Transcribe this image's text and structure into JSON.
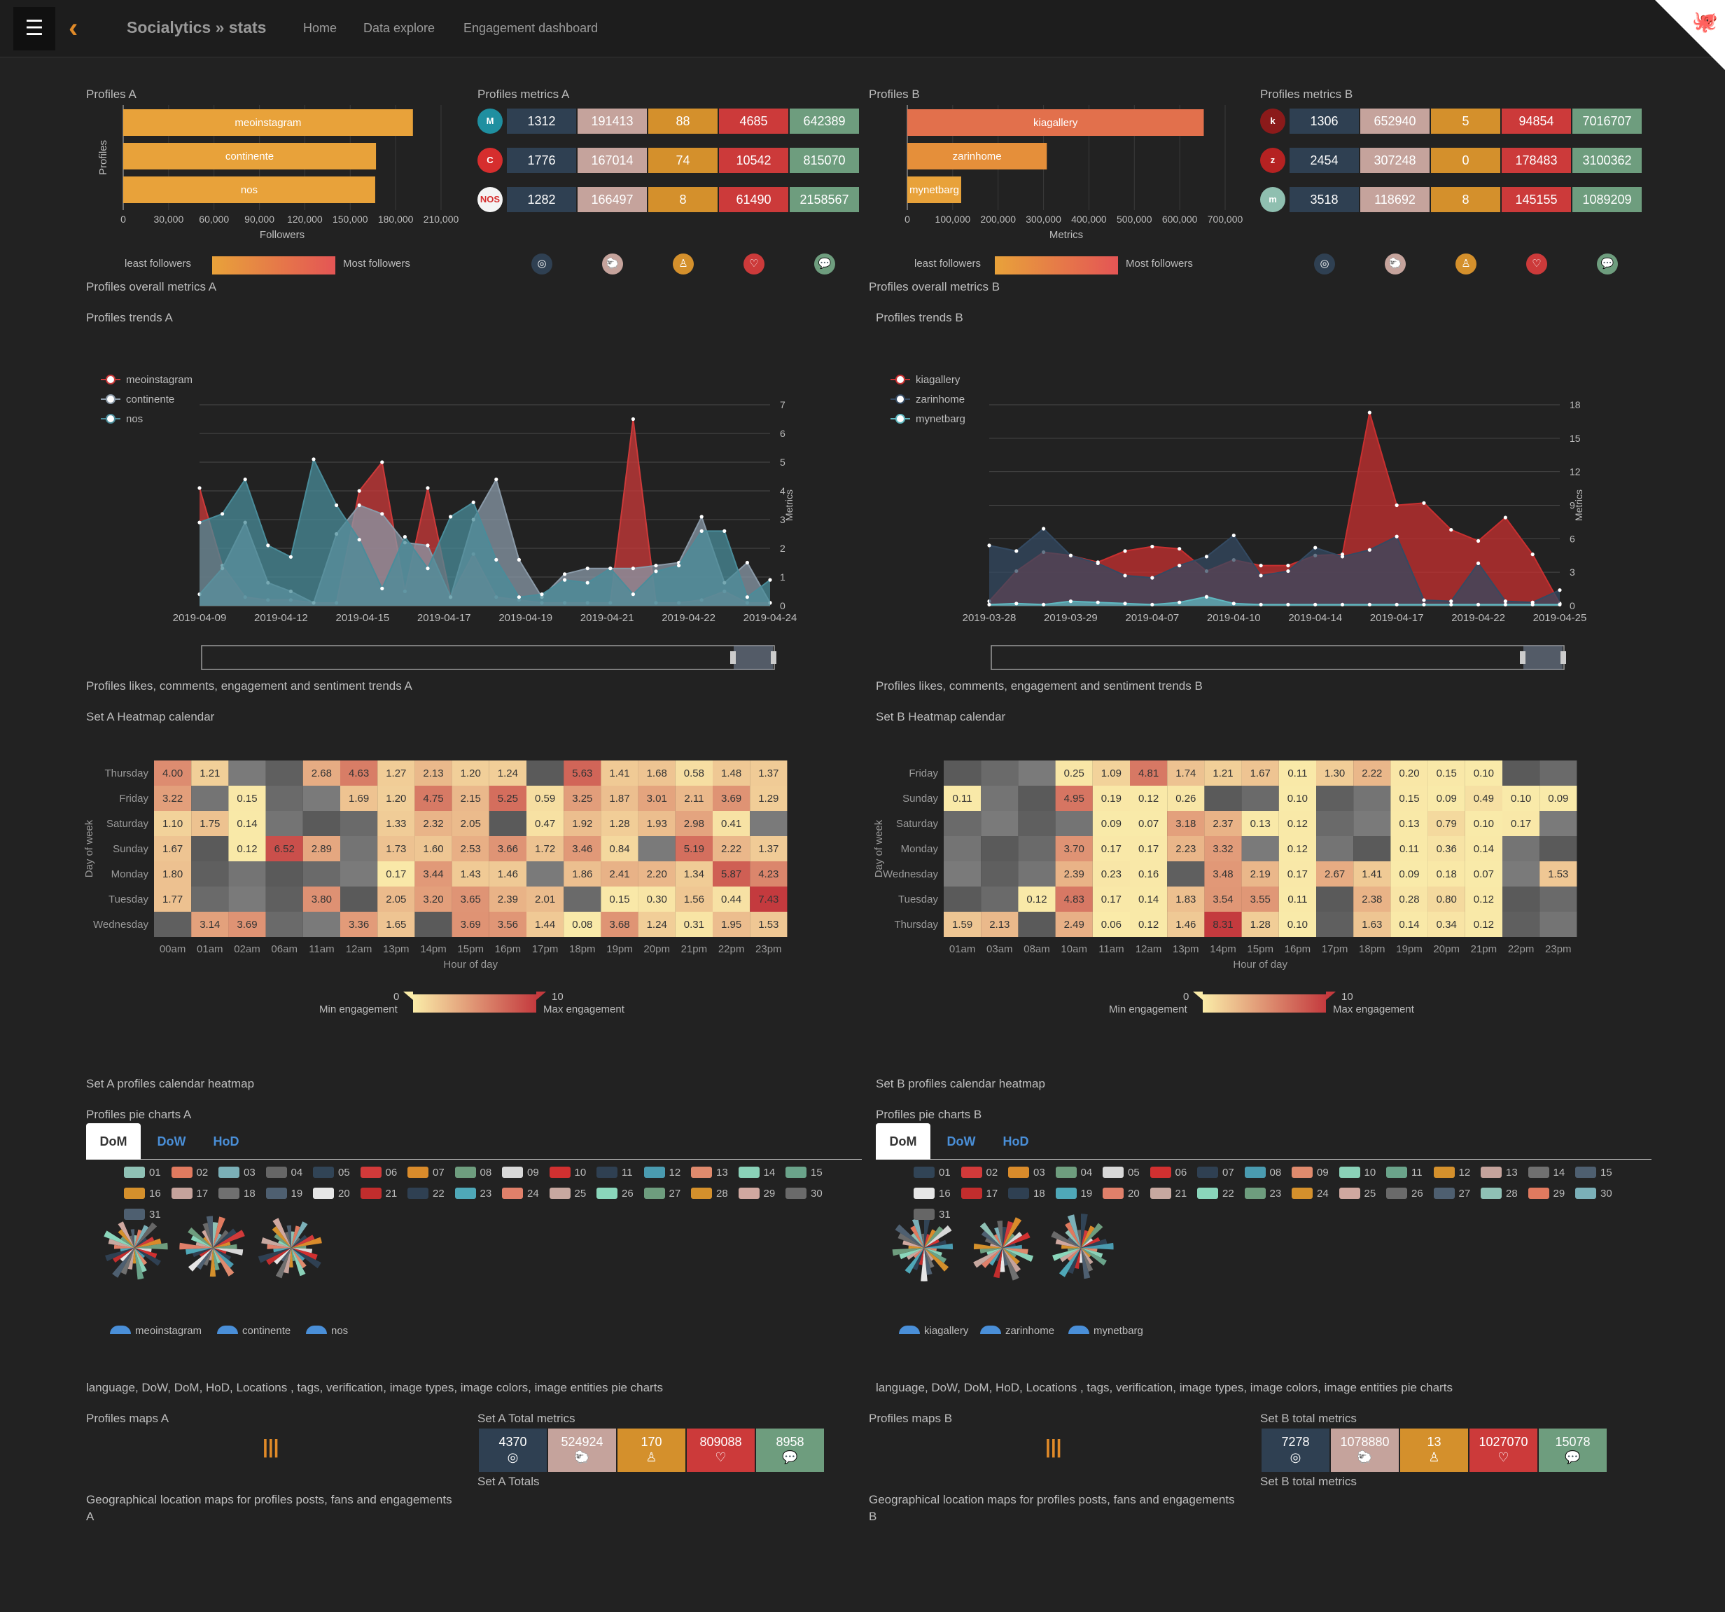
{
  "nav": {
    "brand": "Socialytics » stats",
    "links": [
      "Home",
      "Data explore",
      "Engagement dashboard"
    ]
  },
  "colors": {
    "orange": "#e8a23a",
    "red": "#cc3a3a",
    "slate": "#2f4052",
    "pink": "#c5a39c",
    "green": "#6e9d7e",
    "teal": "#4a8c9a"
  },
  "A": {
    "profiles_title": "Profiles A",
    "profiles_ylabel": "Profiles",
    "profiles_xlabel": "Followers",
    "profiles_ticks": [
      "0",
      "30,000",
      "60,000",
      "90,000",
      "120,000",
      "150,000",
      "180,000",
      "210,000"
    ],
    "profiles_max": 210000,
    "profiles": [
      {
        "name": "meoinstagram",
        "value": 191413
      },
      {
        "name": "continente",
        "value": 167014
      },
      {
        "name": "nos",
        "value": 166497
      }
    ],
    "grad_left": "least followers",
    "grad_right": "Most followers",
    "metrics_title": "Profiles metrics A",
    "metrics": [
      [
        "1312",
        "191413",
        "88",
        "4685",
        "642389"
      ],
      [
        "1776",
        "167014",
        "74",
        "10542",
        "815070"
      ],
      [
        "1282",
        "166497",
        "8",
        "61490",
        "2158567"
      ]
    ],
    "avatars": [
      {
        "label": "M",
        "color": "#1f8fa0"
      },
      {
        "label": "C",
        "color": "#d62e2e"
      },
      {
        "label": "NOS",
        "color": "#f4f4f4"
      }
    ],
    "overall_title": "Profiles overall metrics A",
    "trends_title": "Profiles trends A",
    "trends_legend": [
      "meoinstagram",
      "continente",
      "nos"
    ],
    "trends_xticks": [
      "2019-04-09",
      "2019-04-12",
      "2019-04-15",
      "2019-04-17",
      "2019-04-19",
      "2019-04-21",
      "2019-04-22",
      "2019-04-24"
    ],
    "trends_yticks": [
      "0",
      "1",
      "2",
      "3",
      "4",
      "5",
      "6",
      "7"
    ],
    "trends_ymax": 7,
    "trends_ylabel": "Metrics",
    "likes_title": "Profiles likes, comments, engagement and sentiment trends A",
    "heatmap_title": "Set A Heatmap calendar",
    "heat_rows": [
      "Thursday",
      "Friday",
      "Saturday",
      "Sunday",
      "Monday",
      "Tuesday",
      "Wednesday"
    ],
    "heat_cols": [
      "00am",
      "01am",
      "02am",
      "06am",
      "11am",
      "12am",
      "13pm",
      "14pm",
      "15pm",
      "16pm",
      "17pm",
      "18pm",
      "19pm",
      "20pm",
      "21pm",
      "22pm",
      "23pm"
    ],
    "heat_values": [
      [
        "4.00",
        "1.21",
        "",
        "",
        "2.68",
        "4.63",
        "1.27",
        "2.13",
        "1.20",
        "1.24",
        "",
        "5.63",
        "1.41",
        "1.68",
        "0.58",
        "1.48",
        "1.37"
      ],
      [
        "3.22",
        "",
        "0.15",
        "",
        "",
        "1.69",
        "1.20",
        "4.75",
        "2.15",
        "5.25",
        "0.59",
        "3.25",
        "1.87",
        "3.01",
        "2.11",
        "3.69",
        "1.29"
      ],
      [
        "1.10",
        "1.75",
        "0.14",
        "",
        "",
        "",
        "1.33",
        "2.32",
        "2.05",
        "",
        "0.47",
        "1.92",
        "1.28",
        "1.93",
        "2.98",
        "0.41",
        ""
      ],
      [
        "1.67",
        "",
        "0.12",
        "6.52",
        "2.89",
        "",
        "1.73",
        "1.60",
        "2.53",
        "3.66",
        "1.72",
        "3.46",
        "0.84",
        "",
        "5.19",
        "2.22",
        "1.37"
      ],
      [
        "1.80",
        "",
        "",
        "",
        "",
        "",
        "0.17",
        "3.44",
        "1.43",
        "1.46",
        "",
        "1.86",
        "2.41",
        "2.20",
        "1.34",
        "5.87",
        "4.23"
      ],
      [
        "1.77",
        "",
        "",
        "",
        "3.80",
        "",
        "2.05",
        "3.20",
        "3.65",
        "2.39",
        "2.01",
        "",
        "0.15",
        "0.30",
        "1.56",
        "0.44",
        "7.43"
      ],
      [
        "",
        "3.14",
        "3.69",
        "",
        "",
        "3.36",
        "1.65",
        "",
        "3.69",
        "3.56",
        "1.44",
        "0.08",
        "3.68",
        "1.24",
        "0.31",
        "1.95",
        "1.53"
      ]
    ],
    "heat_xlabel": "Hour of day",
    "heat_ylabel": "Day of week",
    "heat_min": "0",
    "heat_max": "10",
    "heat_min_label": "Min engagement",
    "heat_max_label": "Max engagement",
    "cal_title": "Set A profiles calendar heatmap",
    "pie_title": "Profiles pie charts A",
    "tabs": [
      "DoM",
      "DoW",
      "HoD"
    ],
    "pie_profiles": [
      "meoinstagram",
      "continente",
      "nos"
    ],
    "pie_caption": "language, DoW, DoM, HoD, Locations , tags, verification, image types, image colors, image entities pie charts",
    "maps_title": "Profiles maps A",
    "maps_caption_1": "Geographical location maps for profiles posts, fans and engagements",
    "maps_caption_2": "A",
    "total_title": "Set A Total metrics",
    "totals": [
      "4370",
      "524924",
      "170",
      "809088",
      "8958"
    ],
    "total_caption": "Set A Totals"
  },
  "B": {
    "profiles_title": "Profiles B",
    "profiles_xlabel": "Metrics",
    "profiles_ticks": [
      "0",
      "100,000",
      "200,000",
      "300,000",
      "400,000",
      "500,000",
      "600,000",
      "700,000"
    ],
    "profiles_max": 700000,
    "profiles": [
      {
        "name": "kiagallery",
        "value": 652940
      },
      {
        "name": "zarinhome",
        "value": 307248
      },
      {
        "name": "mynetbarg",
        "value": 118692
      }
    ],
    "grad_left": "least followers",
    "grad_right": "Most followers",
    "metrics_title": "Profiles metrics B",
    "metrics": [
      [
        "1306",
        "652940",
        "5",
        "94854",
        "7016707"
      ],
      [
        "2454",
        "307248",
        "0",
        "178483",
        "3100362"
      ],
      [
        "3518",
        "118692",
        "8",
        "145155",
        "1089209"
      ]
    ],
    "avatars": [
      {
        "label": "k",
        "color": "#8b1a1a"
      },
      {
        "label": "z",
        "color": "#b52222"
      },
      {
        "label": "m",
        "color": "#8fbfb0"
      }
    ],
    "overall_title": "Profiles overall metrics B",
    "trends_title": "Profiles trends B",
    "trends_legend": [
      "kiagallery",
      "zarinhome",
      "mynetbarg"
    ],
    "trends_xticks": [
      "2019-03-28",
      "2019-03-29",
      "2019-04-07",
      "2019-04-10",
      "2019-04-14",
      "2019-04-17",
      "2019-04-22",
      "2019-04-25"
    ],
    "trends_yticks": [
      "0",
      "3",
      "6",
      "9",
      "12",
      "15",
      "18"
    ],
    "trends_ymax": 18,
    "trends_ylabel": "Metrics",
    "likes_title": "Profiles likes, comments, engagement and sentiment trends B",
    "heatmap_title": "Set B Heatmap calendar",
    "heat_rows": [
      "Friday",
      "Sunday",
      "Saturday",
      "Monday",
      "Wednesday",
      "Tuesday",
      "Thursday"
    ],
    "heat_cols": [
      "01am",
      "03am",
      "08am",
      "10am",
      "11am",
      "12am",
      "13pm",
      "14pm",
      "15pm",
      "16pm",
      "17pm",
      "18pm",
      "19pm",
      "20pm",
      "21pm",
      "22pm",
      "23pm"
    ],
    "heat_values": [
      [
        "",
        "",
        "",
        "0.25",
        "1.09",
        "4.81",
        "1.74",
        "1.21",
        "1.67",
        "0.11",
        "1.30",
        "2.22",
        "0.20",
        "0.15",
        "0.10",
        "",
        ""
      ],
      [
        "0.11",
        "",
        "",
        "4.95",
        "0.19",
        "0.12",
        "0.26",
        "",
        "",
        "0.10",
        "",
        "",
        "0.15",
        "0.09",
        "0.49",
        "0.10",
        "0.09"
      ],
      [
        "",
        "",
        "",
        "",
        "0.09",
        "0.07",
        "3.18",
        "2.37",
        "0.13",
        "0.12",
        "",
        "",
        "0.13",
        "0.79",
        "0.10",
        "0.17",
        ""
      ],
      [
        "",
        "",
        "",
        "3.70",
        "0.17",
        "0.17",
        "2.23",
        "3.32",
        "",
        "0.12",
        "",
        "",
        "0.11",
        "0.36",
        "0.14",
        "",
        ""
      ],
      [
        "",
        "",
        "",
        "2.39",
        "0.23",
        "0.16",
        "",
        "3.48",
        "2.19",
        "0.17",
        "2.67",
        "1.41",
        "0.09",
        "0.18",
        "0.07",
        "",
        "1.53"
      ],
      [
        "",
        "",
        "0.12",
        "4.83",
        "0.17",
        "0.14",
        "1.83",
        "3.54",
        "3.55",
        "0.11",
        "",
        "2.38",
        "0.28",
        "0.80",
        "0.12",
        "",
        ""
      ],
      [
        "1.59",
        "2.13",
        "",
        "2.49",
        "0.06",
        "0.12",
        "1.46",
        "8.31",
        "1.28",
        "0.10",
        "",
        "1.63",
        "0.14",
        "0.34",
        "0.12",
        "",
        ""
      ]
    ],
    "heat_xlabel": "Hour of day",
    "heat_ylabel": "Day of week",
    "heat_min": "0",
    "heat_max": "10",
    "heat_min_label": "Min engagement",
    "heat_max_label": "Max engagement",
    "cal_title": "Set B profiles calendar heatmap",
    "pie_title": "Profiles pie charts B",
    "tabs": [
      "DoM",
      "DoW",
      "HoD"
    ],
    "pie_profiles": [
      "kiagallery",
      "zarinhome",
      "mynetbarg"
    ],
    "pie_caption": "language, DoW, DoM, HoD, Locations , tags, verification, image types, image colors, image entities pie charts",
    "maps_title": "Profiles maps B",
    "maps_caption_1": "Geographical location maps for profiles posts, fans and engagements",
    "maps_caption_2": "B",
    "total_title": "Set B total metrics",
    "totals": [
      "7278",
      "1078880",
      "13",
      "1027070",
      "15078"
    ],
    "total_caption": "Set B total metrics"
  },
  "chart_data": [
    {
      "type": "bar",
      "title": "Profiles A",
      "categories": [
        "meoinstagram",
        "continente",
        "nos"
      ],
      "values": [
        191413,
        167014,
        166497
      ],
      "xlabel": "Followers",
      "ylabel": "Profiles",
      "xlim": [
        0,
        210000
      ]
    },
    {
      "type": "bar",
      "title": "Profiles B",
      "categories": [
        "kiagallery",
        "zarinhome",
        "mynetbarg"
      ],
      "values": [
        652940,
        307248,
        118692
      ],
      "xlabel": "Metrics",
      "xlim": [
        0,
        700000
      ]
    },
    {
      "type": "area",
      "title": "Profiles trends A",
      "ylabel": "Metrics",
      "ylim": [
        0,
        7
      ],
      "series": [
        {
          "name": "meoinstagram",
          "values": [
            4.1,
            1.4,
            0.3,
            0.2,
            0.2,
            0.1,
            0.1,
            4.0,
            5.0,
            0.5,
            4.1,
            0.3,
            1.8,
            0.3,
            0.2,
            0.1,
            0.1,
            0.1,
            0.1,
            6.5,
            0.1,
            0.1,
            0.2,
            0.5,
            0.1,
            0.1
          ]
        },
        {
          "name": "continente",
          "values": [
            0.4,
            1.3,
            2.9,
            0.8,
            0.5,
            0.1,
            2.5,
            3.5,
            3.2,
            2.2,
            2.1,
            0.3,
            3.0,
            4.4,
            1.6,
            0.3,
            1.1,
            1.3,
            1.3,
            1.3,
            1.4,
            1.5,
            3.1,
            0.8,
            1.5,
            0.1
          ]
        },
        {
          "name": "nos",
          "values": [
            2.9,
            3.2,
            4.4,
            2.1,
            1.7,
            5.1,
            3.5,
            2.3,
            0.6,
            2.4,
            1.3,
            3.1,
            3.6,
            1.6,
            0.3,
            0.4,
            0.9,
            0.8,
            1.3,
            0.4,
            1.2,
            1.4,
            2.6,
            2.6,
            0.3,
            0.9
          ]
        }
      ]
    },
    {
      "type": "area",
      "title": "Profiles trends B",
      "ylabel": "Metrics",
      "ylim": [
        0,
        18
      ],
      "series": [
        {
          "name": "kiagallery",
          "values": [
            0.4,
            3.1,
            4.8,
            4.5,
            3.9,
            4.9,
            5.3,
            5.1,
            3.1,
            4.1,
            3.6,
            3.6,
            4.5,
            4.6,
            17.3,
            9.0,
            9.2,
            6.8,
            5.8,
            7.9,
            4.6,
            0.2
          ]
        },
        {
          "name": "zarinhome",
          "values": [
            5.4,
            4.9,
            6.9,
            4.5,
            3.8,
            2.7,
            2.5,
            3.6,
            4.4,
            6.3,
            2.7,
            3.1,
            5.2,
            4.4,
            5.0,
            6.2,
            0.5,
            0.4,
            3.8,
            0.4,
            0.3,
            1.4
          ]
        },
        {
          "name": "mynetbarg",
          "values": [
            0.1,
            0.2,
            0.1,
            0.4,
            0.3,
            0.2,
            0.1,
            0.3,
            0.8,
            0.2,
            0.1,
            0.1,
            0.1,
            0.1,
            0.1,
            0.1,
            0.1,
            0.1,
            0.1,
            0.1,
            0.1,
            0.1
          ]
        }
      ]
    },
    {
      "type": "heatmap",
      "title": "Set A Heatmap calendar",
      "xlabel": "Hour of day",
      "ylabel": "Day of week",
      "min": 0,
      "max": 10
    },
    {
      "type": "heatmap",
      "title": "Set B Heatmap calendar",
      "xlabel": "Hour of day",
      "ylabel": "Day of week",
      "min": 0,
      "max": 10
    }
  ]
}
